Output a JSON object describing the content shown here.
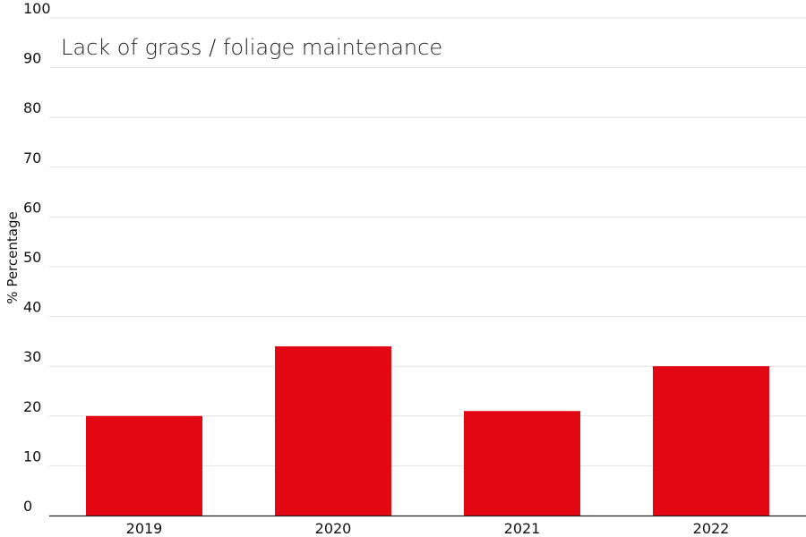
{
  "chart_data": {
    "type": "bar",
    "title": "Lack of grass / foliage maintenance",
    "xlabel": "",
    "ylabel": "% Percentage",
    "categories": [
      "2019",
      "2020",
      "2021",
      "2022"
    ],
    "values": [
      20,
      34,
      21,
      30
    ],
    "ylim": [
      0,
      100
    ],
    "yticks": [
      0,
      10,
      20,
      30,
      40,
      50,
      60,
      70,
      80,
      90,
      100
    ],
    "grid": true,
    "bar_color": "#e30613"
  }
}
